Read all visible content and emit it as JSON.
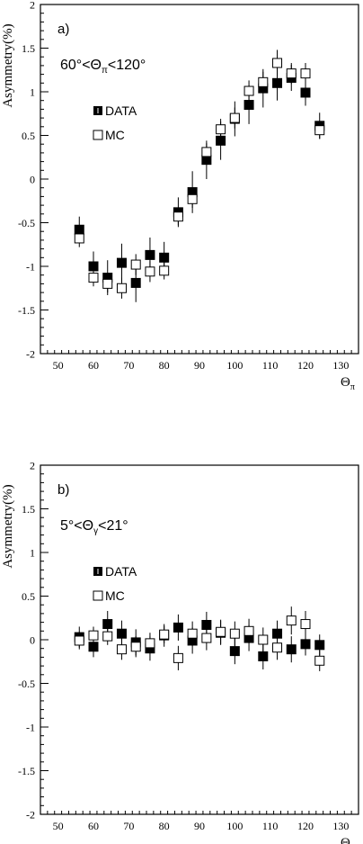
{
  "chart_data": [
    {
      "type": "scatter",
      "panel_label": "a)",
      "annotation": "60°<Θπ<120°",
      "annotation_parts": {
        "pre": "60°<Θ",
        "sub": "π",
        "post": "<120°"
      },
      "xlabel": "Θπ",
      "xlabel_parts": {
        "main": "Θ",
        "sub": "π"
      },
      "ylabel": "Asymmetry(%)",
      "xlim": [
        45,
        135
      ],
      "ylim": [
        -2,
        2
      ],
      "xticks": [
        "50",
        "60",
        "70",
        "80",
        "90",
        "100",
        "110",
        "120",
        "130"
      ],
      "yticks": [
        "-2",
        "-1.5",
        "-1",
        "-0.5",
        "0",
        "0.5",
        "1",
        "1.5",
        "2"
      ],
      "legend": {
        "placement": "upper-left",
        "entries": [
          "DATA",
          "MC"
        ]
      },
      "series": [
        {
          "name": "DATA",
          "marker": "filled-square",
          "x": [
            56,
            60,
            64,
            68,
            72,
            76,
            80,
            84,
            88,
            92,
            96,
            100,
            104,
            108,
            112,
            116,
            120,
            124
          ],
          "y": [
            -0.58,
            -1.0,
            -1.13,
            -0.96,
            -1.19,
            -0.87,
            -0.9,
            -0.38,
            -0.15,
            0.22,
            0.44,
            0.69,
            0.85,
            1.04,
            1.1,
            1.16,
            0.99,
            0.61
          ],
          "err": [
            0.15,
            0.17,
            0.2,
            0.22,
            0.22,
            0.2,
            0.18,
            0.17,
            0.24,
            0.22,
            0.22,
            0.2,
            0.22,
            0.22,
            0.2,
            0.15,
            0.15,
            0.15
          ]
        },
        {
          "name": "MC",
          "marker": "open-square",
          "x": [
            56,
            60,
            64,
            68,
            72,
            76,
            80,
            84,
            88,
            92,
            96,
            100,
            104,
            108,
            112,
            116,
            120,
            124
          ],
          "y": [
            -0.68,
            -1.13,
            -1.2,
            -1.25,
            -0.98,
            -1.06,
            -1.05,
            -0.43,
            -0.23,
            0.31,
            0.57,
            0.7,
            1.01,
            1.11,
            1.33,
            1.21,
            1.21,
            0.56
          ],
          "err": [
            0.1,
            0.1,
            0.1,
            0.12,
            0.12,
            0.12,
            0.1,
            0.1,
            0.1,
            0.1,
            0.12,
            0.12,
            0.12,
            0.12,
            0.15,
            0.12,
            0.12,
            0.1
          ]
        }
      ]
    },
    {
      "type": "scatter",
      "panel_label": "b)",
      "annotation": "5°<Θγ<21°",
      "annotation_parts": {
        "pre": "5°<Θ",
        "sub": "γ",
        "post": "<21°"
      },
      "xlabel": "Θπ",
      "xlabel_parts": {
        "main": "Θ",
        "sub": "π"
      },
      "ylabel": "Asymmetry(%)",
      "xlim": [
        45,
        135
      ],
      "ylim": [
        -2,
        2
      ],
      "xticks": [
        "50",
        "60",
        "70",
        "80",
        "90",
        "100",
        "110",
        "120",
        "130"
      ],
      "yticks": [
        "-2",
        "-1.5",
        "-1",
        "-0.5",
        "0",
        "0.5",
        "1",
        "1.5",
        "2"
      ],
      "legend": {
        "placement": "upper-left",
        "entries": [
          "DATA",
          "MC"
        ]
      },
      "series": [
        {
          "name": "DATA",
          "marker": "filled-square",
          "x": [
            56,
            60,
            64,
            68,
            72,
            76,
            80,
            84,
            88,
            92,
            96,
            100,
            104,
            108,
            112,
            116,
            120,
            124
          ],
          "y": [
            0.03,
            -0.08,
            0.18,
            0.07,
            -0.03,
            -0.1,
            0.05,
            0.14,
            -0.01,
            0.17,
            0.08,
            -0.13,
            0.02,
            -0.19,
            0.07,
            -0.11,
            -0.05,
            -0.06
          ],
          "err": [
            0.12,
            0.12,
            0.15,
            0.15,
            0.15,
            0.14,
            0.13,
            0.15,
            0.15,
            0.15,
            0.14,
            0.15,
            0.15,
            0.15,
            0.15,
            0.15,
            0.13,
            0.12
          ]
        },
        {
          "name": "MC",
          "marker": "open-square",
          "x": [
            56,
            60,
            64,
            68,
            72,
            76,
            80,
            84,
            88,
            92,
            96,
            100,
            104,
            108,
            112,
            116,
            120,
            124
          ],
          "y": [
            -0.01,
            0.05,
            0.04,
            -0.11,
            -0.08,
            -0.04,
            0.06,
            -0.21,
            0.07,
            0.02,
            0.09,
            0.07,
            0.1,
            0.0,
            -0.09,
            0.22,
            0.18,
            -0.24
          ],
          "err": [
            0.1,
            0.1,
            0.1,
            0.12,
            0.12,
            0.12,
            0.1,
            0.14,
            0.14,
            0.14,
            0.14,
            0.14,
            0.14,
            0.14,
            0.14,
            0.16,
            0.15,
            0.12
          ]
        }
      ]
    }
  ]
}
